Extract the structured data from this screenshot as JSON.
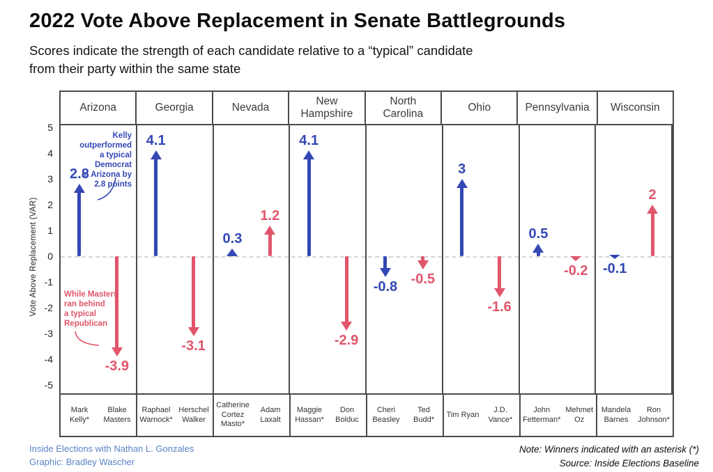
{
  "title": "2022 Vote Above Replacement in Senate Battlegrounds",
  "subtitle_line1": "Scores indicate the strength of each candidate relative to a “typical” candidate",
  "subtitle_line2": "from their party within the same state",
  "chart_data": {
    "type": "bar",
    "style": "arrows-from-zero",
    "title": "2022 Vote Above Replacement in Senate Battlegrounds",
    "xlabel": "",
    "ylabel": "Vote Above Replacement (VAR)",
    "ylim": [
      -5,
      5
    ],
    "yticks": [
      5,
      4,
      3,
      2,
      1,
      0,
      -1,
      -2,
      -3,
      -4,
      -5
    ],
    "grid": "zero-dashed-line-only",
    "colors": {
      "democrat": "#3347b5",
      "republican": "#e0566b"
    },
    "panels": [
      {
        "state": "Arizona",
        "candidates": [
          {
            "name": "Mark Kelly*",
            "party": "D",
            "value": 2.8,
            "label": "2.8",
            "winner": true
          },
          {
            "name": "Blake Masters",
            "party": "R",
            "value": -3.9,
            "label": "-3.9",
            "winner": false
          }
        ]
      },
      {
        "state": "Georgia",
        "candidates": [
          {
            "name": "Raphael Warnock*",
            "party": "D",
            "value": 4.1,
            "label": "4.1",
            "winner": true
          },
          {
            "name": "Herschel Walker",
            "party": "R",
            "value": -3.1,
            "label": "-3.1",
            "winner": false
          }
        ]
      },
      {
        "state": "Nevada",
        "candidates": [
          {
            "name": "Catherine Cortez Masto*",
            "party": "D",
            "value": 0.3,
            "label": "0.3",
            "winner": true
          },
          {
            "name": "Adam Laxalt",
            "party": "R",
            "value": 1.2,
            "label": "1.2",
            "winner": false
          }
        ]
      },
      {
        "state": "New Hampshire",
        "candidates": [
          {
            "name": "Maggie Hassan*",
            "party": "D",
            "value": 4.1,
            "label": "4.1",
            "winner": true
          },
          {
            "name": "Don Bolduc",
            "party": "R",
            "value": -2.9,
            "label": "-2.9",
            "winner": false
          }
        ]
      },
      {
        "state": "North Carolina",
        "candidates": [
          {
            "name": "Cheri Beasley",
            "party": "D",
            "value": -0.8,
            "label": "-0.8",
            "winner": false
          },
          {
            "name": "Ted Budd*",
            "party": "R",
            "value": -0.5,
            "label": "-0.5",
            "winner": true
          }
        ]
      },
      {
        "state": "Ohio",
        "candidates": [
          {
            "name": "Tim Ryan",
            "party": "D",
            "value": 3,
            "label": "3",
            "winner": false
          },
          {
            "name": "J.D. Vance*",
            "party": "R",
            "value": -1.6,
            "label": "-1.6",
            "winner": true
          }
        ]
      },
      {
        "state": "Pennsylvania",
        "candidates": [
          {
            "name": "John Fetterman*",
            "party": "D",
            "value": 0.5,
            "label": "0.5",
            "winner": true
          },
          {
            "name": "Mehmet Oz",
            "party": "R",
            "value": -0.2,
            "label": "-0.2",
            "winner": false
          }
        ]
      },
      {
        "state": "Wisconsin",
        "candidates": [
          {
            "name": "Mandela Barnes",
            "party": "D",
            "value": -0.1,
            "label": "-0.1",
            "winner": false
          },
          {
            "name": "Ron Johnson*",
            "party": "R",
            "value": 2,
            "label": "2",
            "winner": true
          }
        ]
      }
    ],
    "annotations": [
      {
        "text_lines": [
          "Kelly outperformed",
          "a typical Democrat",
          "in Arizona by",
          "2.8 points"
        ],
        "color": "#3347b5",
        "align": "right"
      },
      {
        "text_lines": [
          "While Masters",
          "ran behind",
          "a typical",
          "Republican"
        ],
        "color": "#e0566b",
        "align": "left"
      }
    ]
  },
  "footer": {
    "credit_line1": "Inside Elections with Nathan L. Gonzales",
    "credit_line2": "Graphic: Bradley Wascher",
    "note": "Note: Winners indicated with an asterisk (*)",
    "source": "Source: Inside Elections Baseline"
  }
}
